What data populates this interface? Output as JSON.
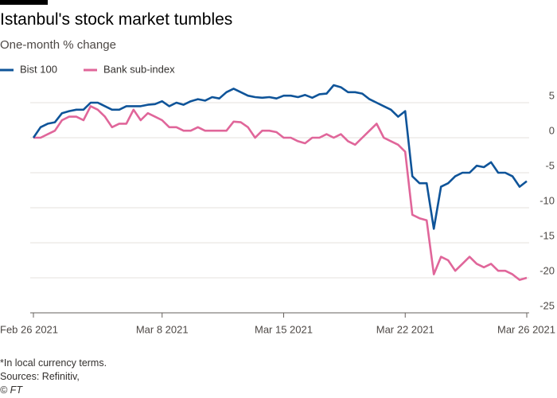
{
  "chart_data": {
    "type": "line",
    "title": "Istanbul's stock market tumbles",
    "subtitle": "One-month % change",
    "footnote": "*In local currency terms.",
    "source": "Sources: Refinitiv,",
    "credit": "© FT",
    "categories": [
      "Feb 26 2021",
      null,
      null,
      null,
      null,
      null,
      null,
      null,
      null,
      null,
      null,
      null,
      null,
      null,
      null,
      null,
      null,
      null,
      "Mar 8 2021",
      null,
      null,
      null,
      null,
      null,
      null,
      null,
      null,
      null,
      null,
      null,
      null,
      null,
      null,
      null,
      null,
      "Mar 15 2021",
      null,
      null,
      null,
      null,
      null,
      null,
      null,
      null,
      null,
      null,
      null,
      null,
      null,
      null,
      null,
      null,
      "Mar 22 2021",
      null,
      null,
      null,
      null,
      null,
      null,
      null,
      null,
      null,
      null,
      null,
      null,
      null,
      null,
      null,
      null,
      "Mar 26 2021"
    ],
    "series": [
      {
        "name": "Bist 100",
        "color": "#0f5499",
        "values": [
          0,
          1.5,
          2,
          2.2,
          3.5,
          3.8,
          4,
          4,
          5,
          5,
          4.5,
          4,
          4,
          4.5,
          4.5,
          4.5,
          4.7,
          4.8,
          5.2,
          4.5,
          5,
          4.7,
          5.2,
          5.5,
          5.3,
          5.8,
          5.6,
          6.5,
          7,
          6.5,
          6,
          5.8,
          5.7,
          5.8,
          5.6,
          6,
          6,
          5.8,
          6.1,
          5.7,
          6.2,
          6.3,
          7.5,
          7.2,
          6.5,
          6.5,
          6.3,
          5.5,
          5,
          4.5,
          4,
          3,
          3.8,
          -5.5,
          -6.5,
          -6.5,
          -13,
          -7,
          -6.5,
          -5.5,
          -5,
          -5,
          -4,
          -4.2,
          -3.5,
          -5,
          -5,
          -5.5,
          -7,
          -6.2
        ]
      },
      {
        "name": "Bank sub-index",
        "color": "#e0669a",
        "values": [
          0,
          0,
          0.5,
          1,
          2.5,
          3,
          3,
          2.5,
          4.5,
          4,
          3,
          1.5,
          2,
          2,
          4,
          2.5,
          3.5,
          3,
          2.5,
          1.5,
          1.5,
          1,
          1,
          1.5,
          1,
          1,
          1,
          1,
          2.3,
          2.2,
          1.5,
          0,
          1,
          1,
          0.8,
          0,
          0,
          -0.5,
          -0.8,
          0,
          0,
          0.5,
          0,
          0.5,
          -0.5,
          -1,
          0,
          1,
          2,
          0,
          -0.5,
          -1,
          -2,
          -11,
          -11.5,
          -11.8,
          -19.5,
          -17,
          -17.5,
          -19,
          -18,
          -17,
          -18,
          -18.5,
          -18,
          -19,
          -19,
          -19.5,
          -20.3,
          -20
        ]
      }
    ],
    "ylim": [
      -25,
      7.5
    ],
    "yticks": [
      -25,
      -20,
      -15,
      -10,
      -5,
      0,
      5
    ],
    "grid": true
  }
}
